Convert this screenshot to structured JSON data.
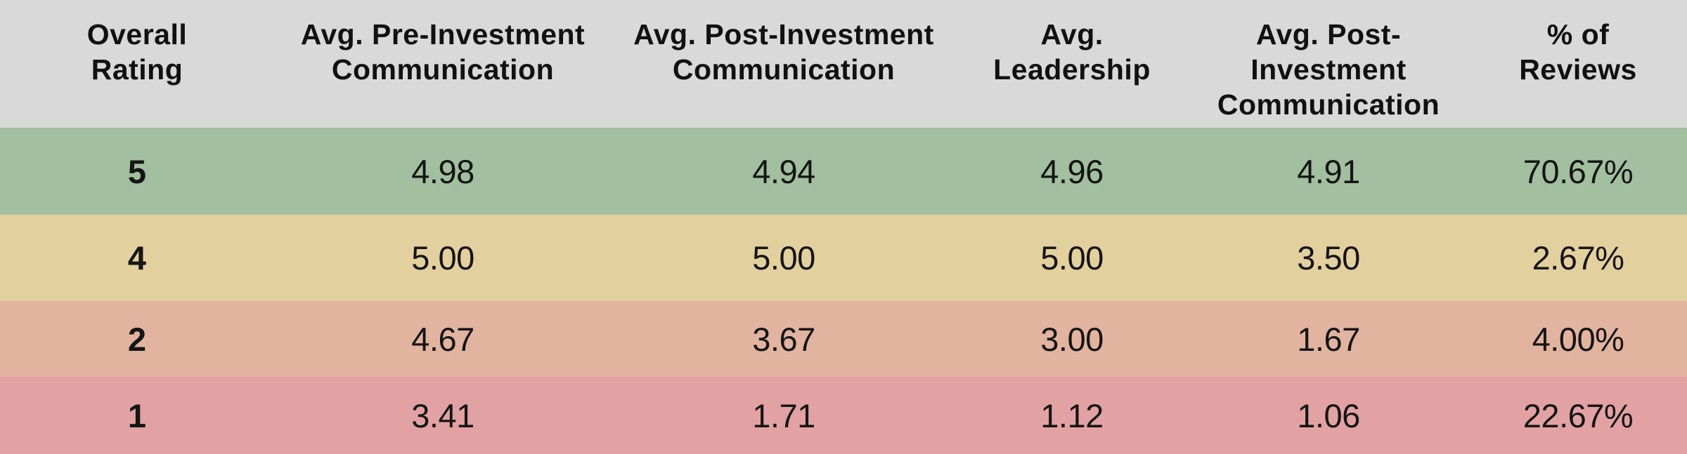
{
  "colors": {
    "header_bg": "#D9D9D9",
    "row_rating5_bg": "#A2BFA0",
    "row_rating4_bg": "#E3D09F",
    "row_rating2_bg": "#E2B49F",
    "row_rating1_bg": "#E2A2A4",
    "text": "#111111"
  },
  "table": {
    "headers": [
      "Overall\nRating",
      "Avg. Pre-Investment\nCommunication",
      "Avg. Post-Investment\nCommunication",
      "Avg.\nLeadership",
      "Avg. Post-Investment\nCommunication",
      "% of\nReviews"
    ],
    "rows": [
      {
        "cells": [
          "5",
          "4.98",
          "4.94",
          "4.96",
          "4.91",
          "70.67%"
        ]
      },
      {
        "cells": [
          "4",
          "5.00",
          "5.00",
          "5.00",
          "3.50",
          "2.67%"
        ]
      },
      {
        "cells": [
          "2",
          "4.67",
          "3.67",
          "3.00",
          "1.67",
          "4.00%"
        ]
      },
      {
        "cells": [
          "1",
          "3.41",
          "1.71",
          "1.12",
          "1.06",
          "22.67%"
        ]
      }
    ]
  },
  "chart_data": {
    "type": "table",
    "columns": [
      "Overall Rating",
      "Avg. Pre-Investment Communication",
      "Avg. Post-Investment Communication",
      "Avg. Leadership",
      "Avg. Post-Investment Communication",
      "% of Reviews"
    ],
    "rows": [
      [
        5,
        4.98,
        4.94,
        4.96,
        4.91,
        "70.67%"
      ],
      [
        4,
        5.0,
        5.0,
        5.0,
        3.5,
        "2.67%"
      ],
      [
        2,
        4.67,
        3.67,
        3.0,
        1.67,
        "4.00%"
      ],
      [
        1,
        3.41,
        1.71,
        1.12,
        1.06,
        "22.67%"
      ]
    ],
    "row_colors": [
      "#A2BFA0",
      "#E3D09F",
      "#E2B49F",
      "#E2A2A4"
    ],
    "legend_position": "none",
    "grid": false
  }
}
